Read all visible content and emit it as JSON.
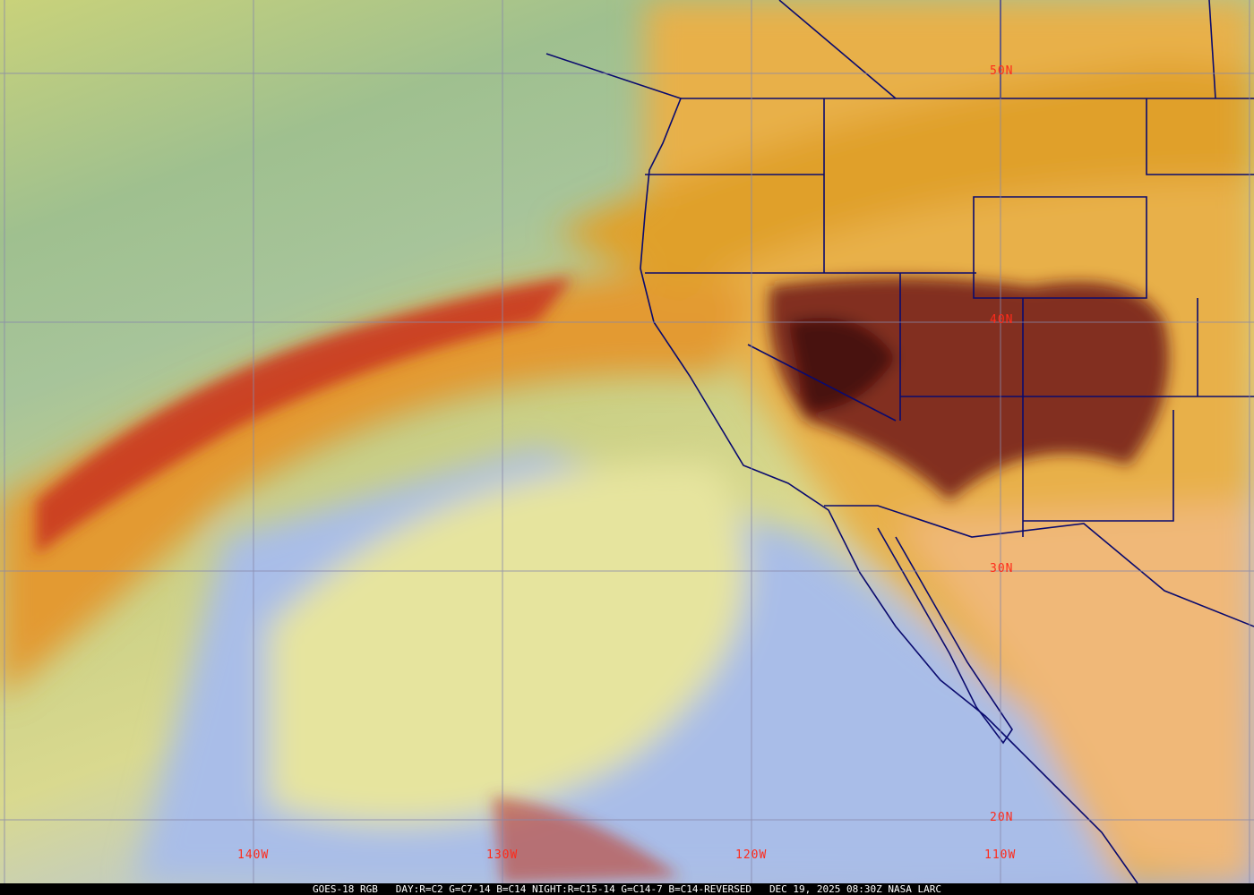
{
  "image": {
    "type": "satellite-rgb-composite",
    "colors": {
      "clear_ocean": "#a7bfe8",
      "low_cloud": "#e3e39a",
      "high_cloud": "#e8a93a",
      "cold_cloud": "#c4271b",
      "deep_cloud": "#5a0f14",
      "boundaries": "#0a0a6e",
      "grid": "#8888aa",
      "labels": "#ff2a1a"
    }
  },
  "grid_labels": {
    "latitudes": [
      "50N",
      "40N",
      "30N",
      "20N"
    ],
    "longitudes": [
      "140W",
      "130W",
      "120W",
      "110W"
    ]
  },
  "caption": {
    "satellite": "GOES-18 RGB",
    "recipe": "DAY:R=C2 G=C7-14 B=C14 NIGHT:R=C15-14 G=C14-7 B=C14-REVERSED",
    "datetime": "DEC 19, 2025 08:30Z",
    "source": "NASA LARC"
  }
}
